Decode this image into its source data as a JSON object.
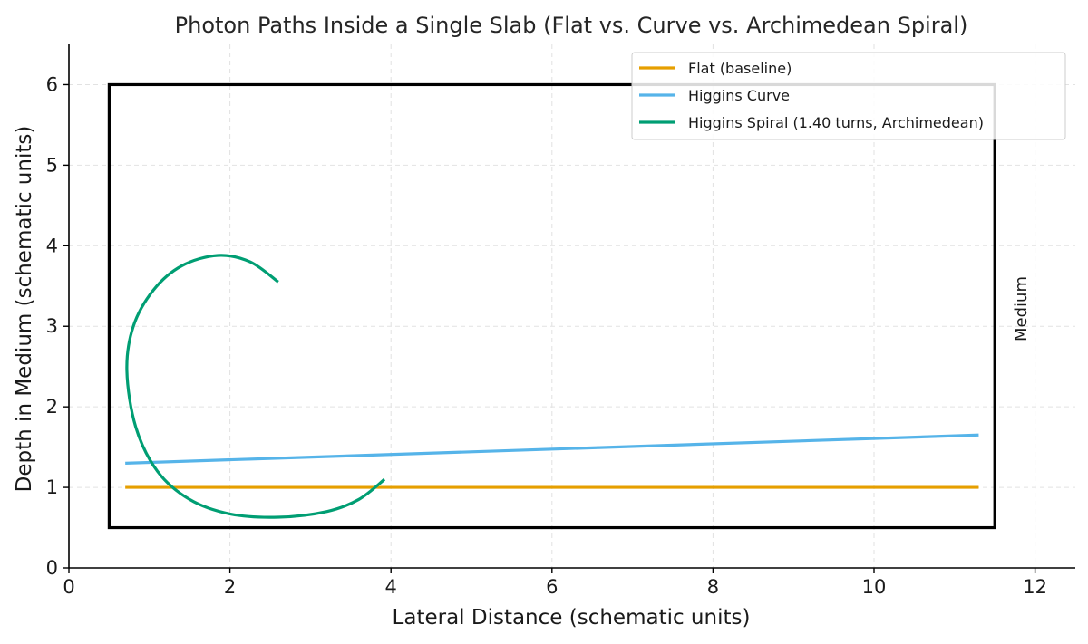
{
  "chart_data": {
    "type": "line",
    "title": "Photon Paths Inside a Single Slab (Flat vs. Curve vs. Archimedean Spiral)",
    "xlabel": "Lateral Distance (schematic units)",
    "ylabel": "Depth in Medium (schematic units)",
    "xlim": [
      0,
      12.5
    ],
    "ylim": [
      0,
      6.5
    ],
    "xticks": [
      0,
      2,
      4,
      6,
      8,
      10,
      12
    ],
    "yticks": [
      0,
      1,
      2,
      3,
      4,
      5,
      6
    ],
    "grid": true,
    "legend_position": "top-right",
    "slab": {
      "x": [
        0.5,
        11.5
      ],
      "y": [
        0.5,
        6.0
      ],
      "color": "#000000"
    },
    "annotation": "Medium",
    "series": [
      {
        "name": "Flat (baseline)",
        "color": "#E69F00",
        "x": [
          0.7,
          11.3
        ],
        "y": [
          1.0,
          1.0
        ]
      },
      {
        "name": "Higgins Curve",
        "color": "#56B4E9",
        "x": [
          0.7,
          11.3
        ],
        "y": [
          1.3,
          1.65
        ]
      },
      {
        "name": "Higgins Spiral (1.40 turns, Archimedean)",
        "color": "#009E73",
        "x": [
          3.92,
          3.6,
          3.2,
          2.6,
          2.0,
          1.5,
          1.1,
          0.83,
          0.72,
          0.8,
          1.05,
          1.4,
          1.85,
          2.25,
          2.6
        ],
        "y": [
          1.1,
          0.85,
          0.7,
          0.63,
          0.67,
          0.85,
          1.2,
          1.75,
          2.45,
          3.0,
          3.45,
          3.75,
          3.88,
          3.8,
          3.55
        ]
      }
    ]
  }
}
